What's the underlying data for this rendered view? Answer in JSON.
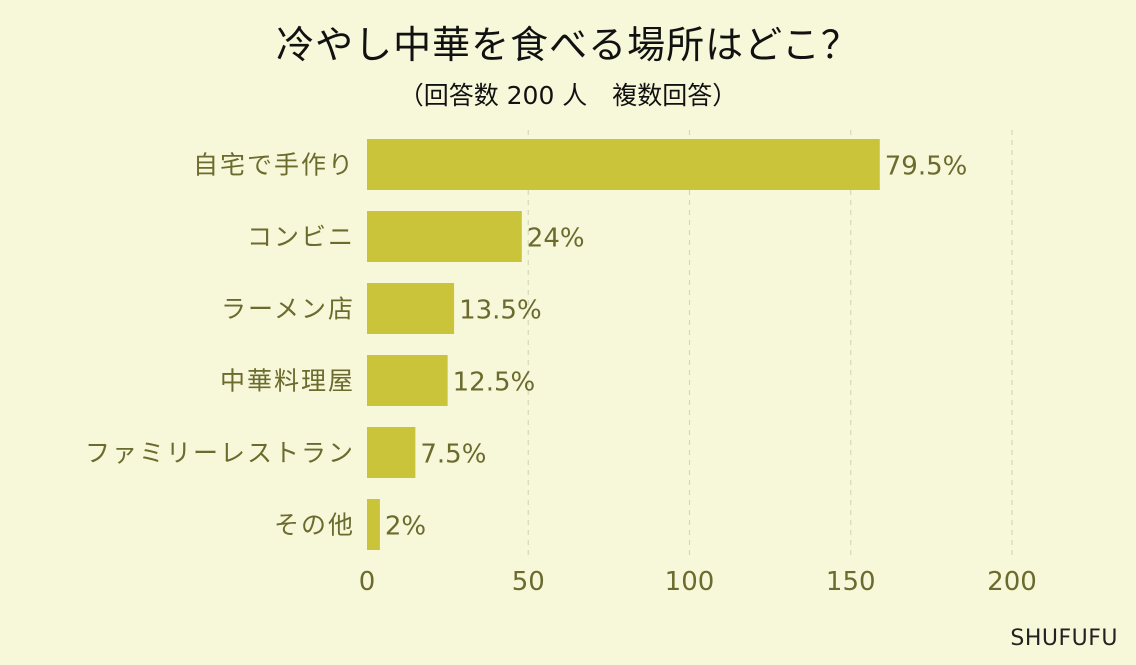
{
  "title": "冷やし中華を食べる場所はどこ？",
  "subtitle": "（回答数 200 人　複数回答）",
  "brand": "SHUFUFU",
  "colors": {
    "bar": "#c9c43a",
    "background": "#f7f7d9",
    "label": "#6b6b2e",
    "grid": "#d6d6b8"
  },
  "chart_data": {
    "type": "bar",
    "orientation": "horizontal",
    "categories": [
      "自宅で手作り",
      "コンビニ",
      "ラーメン店",
      "中華料理屋",
      "ファミリーレストラン",
      "その他"
    ],
    "values": [
      159,
      48,
      27,
      25,
      15,
      4
    ],
    "data_labels": [
      "79.5%",
      "24%",
      "13.5%",
      "12.5%",
      "7.5%",
      "2%"
    ],
    "xlim": [
      0,
      200
    ],
    "xticks": [
      0,
      50,
      100,
      150,
      200
    ],
    "grid": true,
    "xlabel": "",
    "ylabel": ""
  }
}
